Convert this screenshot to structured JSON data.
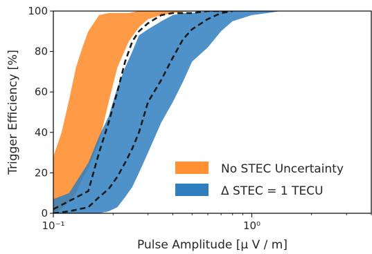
{
  "chart_data": {
    "type": "area",
    "title": "",
    "xlabel": "Pulse Amplitude [μ V / m]",
    "ylabel": "Trigger Efficiency [%]",
    "xscale": "log",
    "xlim": [
      0.1,
      4.0
    ],
    "ylim": [
      0,
      100
    ],
    "xticks": [
      {
        "value": 0.1,
        "label": "10⁻¹"
      },
      {
        "value": 1.0,
        "label": "10⁰"
      }
    ],
    "yticks": [
      0,
      20,
      40,
      60,
      80,
      100
    ],
    "grid": false,
    "legend": {
      "position": "lower-right",
      "entries": [
        {
          "label": "No STEC Uncertainty",
          "color": "#ff9033"
        },
        {
          "label": "Δ STEC = 1 TECU",
          "color": "#2f7fbf"
        }
      ]
    },
    "series": [
      {
        "name": "No STEC Uncertainty",
        "color": "#ff9033",
        "opacity": 0.9,
        "x": [
          0.1,
          0.11,
          0.12,
          0.13,
          0.14,
          0.15,
          0.17,
          0.19,
          0.21,
          0.24,
          0.27,
          0.3,
          0.35,
          0.4,
          0.5,
          0.6,
          0.8,
          1.0
        ],
        "upper": [
          28,
          40,
          56,
          72,
          82,
          90,
          98,
          99,
          99,
          99,
          100,
          100,
          100,
          100,
          100,
          100,
          100,
          100
        ],
        "lower": [
          0,
          2,
          6,
          10,
          17,
          22,
          35,
          55,
          72,
          85,
          92,
          96,
          98,
          99,
          100,
          100,
          100,
          100
        ]
      },
      {
        "name": "Δ STEC = 1 TECU",
        "color": "#2f7fbf",
        "opacity": 0.85,
        "x": [
          0.1,
          0.12,
          0.15,
          0.17,
          0.19,
          0.21,
          0.23,
          0.25,
          0.27,
          0.3,
          0.35,
          0.4,
          0.45,
          0.5,
          0.6,
          0.7,
          0.8,
          1.0,
          1.2,
          1.4
        ],
        "upper": [
          7,
          10,
          25,
          38,
          48,
          62,
          72,
          80,
          88,
          91,
          95,
          98,
          99,
          99,
          100,
          100,
          100,
          100,
          100,
          100
        ],
        "lower": [
          0,
          0,
          0,
          0,
          1,
          3,
          8,
          13,
          20,
          30,
          45,
          55,
          65,
          75,
          82,
          90,
          95,
          98,
          99,
          100
        ]
      }
    ],
    "dashed_lines": [
      {
        "color": "#1a1a1a",
        "x": [
          0.1,
          0.12,
          0.15,
          0.17,
          0.19,
          0.21,
          0.23,
          0.25,
          0.27,
          0.3,
          0.35,
          0.4,
          0.5,
          0.6,
          0.8
        ],
        "y": [
          2,
          6,
          11,
          30,
          45,
          60,
          75,
          85,
          90,
          94,
          98,
          99,
          99,
          100,
          100
        ]
      },
      {
        "color": "#1a1a1a",
        "x": [
          0.1,
          0.12,
          0.15,
          0.17,
          0.19,
          0.21,
          0.23,
          0.25,
          0.27,
          0.3,
          0.35,
          0.4,
          0.45,
          0.5,
          0.6,
          0.7,
          0.8
        ],
        "y": [
          0,
          1,
          3,
          8,
          12,
          18,
          25,
          32,
          40,
          55,
          66,
          77,
          86,
          91,
          96,
          99,
          100
        ]
      }
    ]
  }
}
